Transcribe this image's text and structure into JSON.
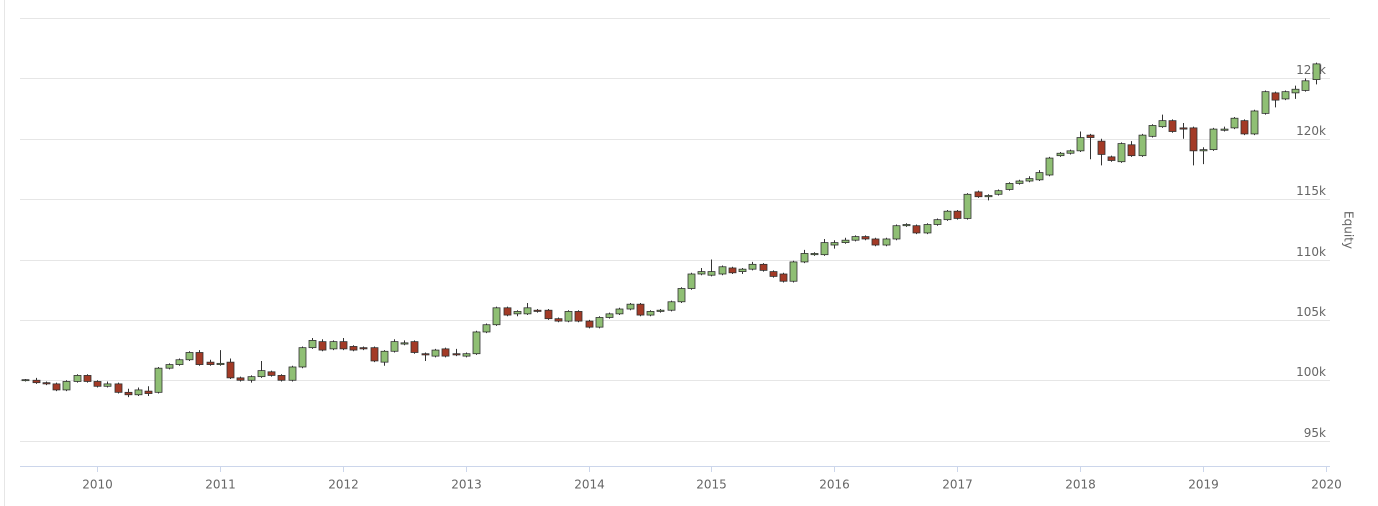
{
  "chart_data": {
    "type": "candlestick",
    "y_label": "Equity",
    "up_color": "#8fbf74",
    "down_color": "#a33a26",
    "grid": true,
    "xlim": [
      2009.373,
      2020.033
    ],
    "xticks": [
      2010,
      2011,
      2012,
      2013,
      2014,
      2015,
      2016,
      2017,
      2018,
      2019,
      2020
    ],
    "ylim": [
      92900,
      130000
    ],
    "yticks": [
      {
        "value": 95000,
        "label": "95k"
      },
      {
        "value": 100000,
        "label": "100k"
      },
      {
        "value": 105000,
        "label": "105k"
      },
      {
        "value": 110000,
        "label": "110k"
      },
      {
        "value": 115000,
        "label": "115k"
      },
      {
        "value": 120000,
        "label": "120k"
      },
      {
        "value": 125000,
        "label": "125k"
      }
    ],
    "x": [
      2009.417,
      2009.5,
      2009.583,
      2009.667,
      2009.75,
      2009.833,
      2009.917,
      2010,
      2010.083,
      2010.167,
      2010.25,
      2010.333,
      2010.417,
      2010.5,
      2010.583,
      2010.667,
      2010.75,
      2010.833,
      2010.917,
      2011,
      2011.083,
      2011.167,
      2011.25,
      2011.333,
      2011.417,
      2011.5,
      2011.583,
      2011.667,
      2011.75,
      2011.833,
      2011.917,
      2012,
      2012.083,
      2012.167,
      2012.25,
      2012.333,
      2012.417,
      2012.5,
      2012.583,
      2012.667,
      2012.75,
      2012.833,
      2012.917,
      2013,
      2013.083,
      2013.167,
      2013.25,
      2013.333,
      2013.417,
      2013.5,
      2013.583,
      2013.667,
      2013.75,
      2013.833,
      2013.917,
      2014,
      2014.083,
      2014.167,
      2014.25,
      2014.333,
      2014.417,
      2014.5,
      2014.583,
      2014.667,
      2014.75,
      2014.833,
      2014.917,
      2015,
      2015.083,
      2015.167,
      2015.25,
      2015.333,
      2015.417,
      2015.5,
      2015.583,
      2015.667,
      2015.75,
      2015.833,
      2015.917,
      2016,
      2016.083,
      2016.167,
      2016.25,
      2016.333,
      2016.417,
      2016.5,
      2016.583,
      2016.667,
      2016.75,
      2016.833,
      2016.917,
      2017,
      2017.083,
      2017.167,
      2017.25,
      2017.333,
      2017.417,
      2017.5,
      2017.583,
      2017.667,
      2017.75,
      2017.833,
      2017.917,
      2018,
      2018.083,
      2018.167,
      2018.25,
      2018.333,
      2018.417,
      2018.5,
      2018.583,
      2018.667,
      2018.75,
      2018.833,
      2018.917,
      2019,
      2019.083,
      2019.167,
      2019.25,
      2019.333,
      2019.417,
      2019.5,
      2019.583,
      2019.667,
      2019.75,
      2019.833,
      2019.917
    ],
    "open": [
      100000,
      100000,
      99800,
      99700,
      99200,
      99900,
      100400,
      99900,
      99500,
      99700,
      99000,
      98800,
      99100,
      99000,
      101000,
      101300,
      101700,
      102300,
      101500,
      101300,
      101500,
      100200,
      100000,
      100300,
      100700,
      100400,
      100000,
      101100,
      102700,
      103200,
      102600,
      103200,
      102800,
      102700,
      102700,
      101500,
      102400,
      103000,
      103200,
      102200,
      102000,
      102600,
      102200,
      102000,
      102200,
      104000,
      104600,
      106000,
      105500,
      105500,
      105800,
      105800,
      105100,
      104900,
      105700,
      104900,
      104400,
      105200,
      105500,
      105900,
      106300,
      105400,
      105700,
      105800,
      106500,
      107600,
      108800,
      108700,
      108800,
      109300,
      109000,
      109200,
      109600,
      109000,
      108800,
      108200,
      109800,
      110400,
      110400,
      111200,
      111400,
      111600,
      111900,
      111700,
      111200,
      111700,
      112800,
      112800,
      112200,
      112900,
      113300,
      114000,
      113400,
      115600,
      115200,
      115400,
      115800,
      116300,
      116500,
      116600,
      117000,
      118600,
      118800,
      119000,
      120300,
      119800,
      118500,
      118100,
      119500,
      118600,
      120200,
      121000,
      121500,
      120900,
      120900,
      119000,
      119100,
      120700,
      120900,
      121500,
      120400,
      122100,
      123800,
      123300,
      123800,
      124000,
      124900
    ],
    "high": [
      100100,
      100200,
      99900,
      99800,
      100000,
      100500,
      100500,
      100000,
      99900,
      99800,
      99300,
      99400,
      99500,
      101100,
      101400,
      101800,
      102400,
      102500,
      101700,
      102500,
      101800,
      100300,
      100400,
      101600,
      100800,
      100500,
      101200,
      102800,
      103500,
      103400,
      103300,
      103500,
      102900,
      102800,
      102800,
      102500,
      103400,
      103300,
      103300,
      102300,
      102600,
      102700,
      102600,
      102300,
      104100,
      104700,
      106100,
      106100,
      105800,
      106400,
      105900,
      105900,
      105200,
      105800,
      105800,
      105000,
      105300,
      105600,
      106000,
      106400,
      106400,
      105800,
      105900,
      106600,
      107700,
      108900,
      109300,
      110000,
      109500,
      109400,
      109300,
      109800,
      109700,
      109100,
      108900,
      109900,
      110800,
      110600,
      111700,
      111600,
      111800,
      112000,
      112000,
      111800,
      111800,
      112900,
      113000,
      112900,
      113000,
      113400,
      114100,
      114100,
      115500,
      115700,
      115400,
      115800,
      116400,
      116600,
      116900,
      117400,
      118500,
      118900,
      119100,
      120600,
      120400,
      120000,
      118600,
      119700,
      119800,
      120400,
      121200,
      122000,
      121600,
      121300,
      121000,
      119300,
      120900,
      121000,
      121800,
      121600,
      122400,
      124000,
      123900,
      124000,
      124400,
      125000,
      126300
    ],
    "low": [
      99900,
      99700,
      99600,
      99100,
      99100,
      99800,
      99800,
      99400,
      99400,
      98900,
      98600,
      98700,
      98700,
      98900,
      100900,
      101200,
      101600,
      101200,
      101200,
      101200,
      100100,
      99900,
      99800,
      100200,
      100300,
      99900,
      99900,
      101000,
      102600,
      102400,
      102500,
      102500,
      102400,
      102500,
      101500,
      101200,
      102300,
      102900,
      102200,
      101600,
      101900,
      101900,
      102000,
      101900,
      102100,
      103900,
      104500,
      105300,
      105300,
      105400,
      105600,
      105000,
      104800,
      104800,
      104800,
      104300,
      104300,
      105100,
      105400,
      105800,
      105300,
      105300,
      105600,
      105700,
      106400,
      107500,
      108700,
      108600,
      108700,
      108800,
      108800,
      109100,
      109000,
      108500,
      108100,
      108100,
      109700,
      110300,
      110300,
      110900,
      111300,
      111500,
      111600,
      111100,
      111100,
      111600,
      112700,
      112100,
      112100,
      112800,
      113200,
      113300,
      113300,
      115100,
      114900,
      115300,
      115700,
      116200,
      116400,
      116500,
      116900,
      118500,
      118700,
      118900,
      118300,
      117800,
      118100,
      118000,
      118500,
      118500,
      120100,
      120900,
      120500,
      120000,
      117800,
      117900,
      119000,
      120600,
      120800,
      120300,
      120300,
      122000,
      122600,
      123200,
      123300,
      123900,
      124500
    ],
    "close": [
      100050,
      99800,
      99700,
      99200,
      99900,
      100400,
      99900,
      99500,
      99700,
      99000,
      98800,
      99200,
      98900,
      101000,
      101300,
      101700,
      102300,
      101300,
      101300,
      101400,
      100200,
      100000,
      100300,
      100800,
      100400,
      100000,
      101100,
      102700,
      103300,
      102500,
      103200,
      102600,
      102500,
      102600,
      101600,
      102400,
      103200,
      103100,
      102300,
      102100,
      102500,
      102000,
      102100,
      102200,
      104000,
      104600,
      106000,
      105400,
      105700,
      106000,
      105700,
      105100,
      104900,
      105700,
      104900,
      104400,
      105200,
      105500,
      105900,
      106300,
      105400,
      105700,
      105800,
      106500,
      107600,
      108800,
      109000,
      109000,
      109400,
      108900,
      109200,
      109600,
      109100,
      108600,
      108200,
      109800,
      110500,
      110500,
      111400,
      111400,
      111600,
      111900,
      111700,
      111200,
      111700,
      112800,
      112900,
      112200,
      112900,
      113300,
      114000,
      113400,
      115400,
      115200,
      115300,
      115700,
      116300,
      116500,
      116700,
      117200,
      118400,
      118800,
      119000,
      120100,
      120100,
      118700,
      118200,
      119600,
      118600,
      120300,
      121100,
      121500,
      120600,
      120800,
      119000,
      119100,
      120800,
      120800,
      121700,
      120400,
      122300,
      123900,
      123200,
      123900,
      124100,
      124800,
      126200
    ]
  }
}
